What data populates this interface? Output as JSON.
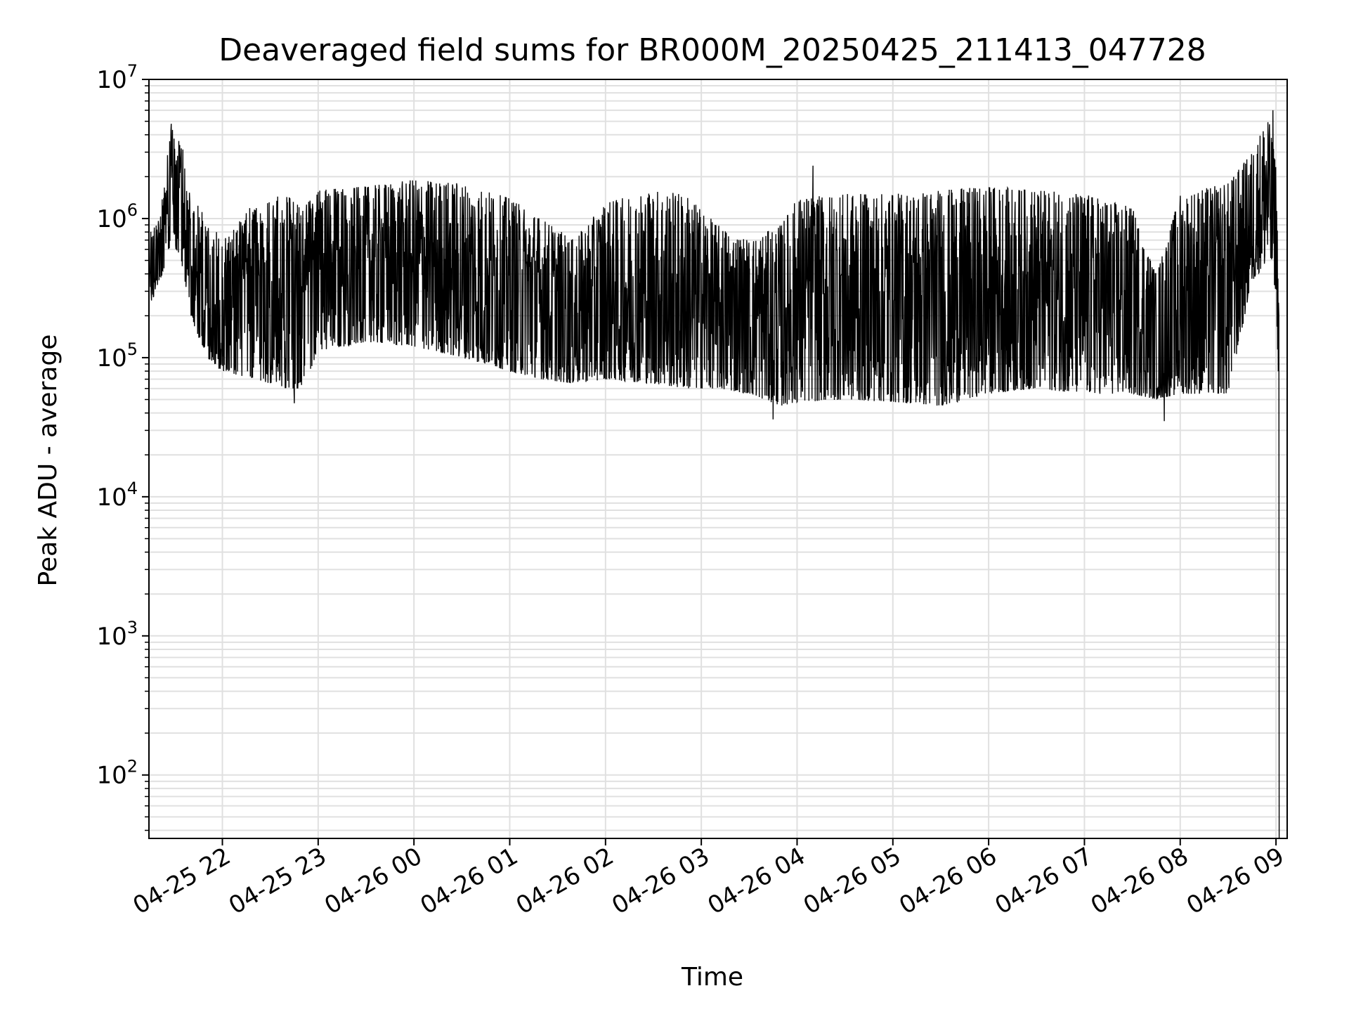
{
  "chart_data": {
    "type": "line",
    "title": "Deaveraged field sums for BR000M_20250425_211413_047728",
    "xlabel": "Time",
    "ylabel": "Peak ADU - average",
    "yscale": "log",
    "ylim": [
      35,
      10000000
    ],
    "xlim": [
      "2025-04-25 21:14",
      "2025-04-26 09:07"
    ],
    "grid": true,
    "grid_minor": true,
    "line_color": "#000000",
    "grid_color": "#e0e0e0",
    "x_ticks": [
      {
        "value": "2025-04-25 22:00",
        "label": "04-25 22"
      },
      {
        "value": "2025-04-25 23:00",
        "label": "04-25 23"
      },
      {
        "value": "2025-04-26 00:00",
        "label": "04-26 00"
      },
      {
        "value": "2025-04-26 01:00",
        "label": "04-26 01"
      },
      {
        "value": "2025-04-26 02:00",
        "label": "04-26 02"
      },
      {
        "value": "2025-04-26 03:00",
        "label": "04-26 03"
      },
      {
        "value": "2025-04-26 04:00",
        "label": "04-26 04"
      },
      {
        "value": "2025-04-26 05:00",
        "label": "04-26 05"
      },
      {
        "value": "2025-04-26 06:00",
        "label": "04-26 06"
      },
      {
        "value": "2025-04-26 07:00",
        "label": "04-26 07"
      },
      {
        "value": "2025-04-26 08:00",
        "label": "04-26 08"
      },
      {
        "value": "2025-04-26 09:00",
        "label": "04-26 09"
      }
    ],
    "y_ticks": [
      {
        "value": 100,
        "base": "10",
        "exp": "2"
      },
      {
        "value": 1000,
        "base": "10",
        "exp": "3"
      },
      {
        "value": 10000,
        "base": "10",
        "exp": "4"
      },
      {
        "value": 100000,
        "base": "10",
        "exp": "5"
      },
      {
        "value": 1000000,
        "base": "10",
        "exp": "6"
      },
      {
        "value": 10000000,
        "base": "10",
        "exp": "7"
      }
    ],
    "series": [
      {
        "envelope": [
          {
            "t": "2025-04-25 21:14",
            "low": 230000,
            "high": 800000
          },
          {
            "t": "2025-04-25 21:20",
            "low": 330000,
            "high": 1000000
          },
          {
            "t": "2025-04-25 21:25",
            "low": 500000,
            "high": 2600000
          },
          {
            "t": "2025-04-25 21:28",
            "low": 700000,
            "high": 4500000
          },
          {
            "t": "2025-04-25 21:35",
            "low": 450000,
            "high": 3300000
          },
          {
            "t": "2025-04-25 21:40",
            "low": 200000,
            "high": 1500000
          },
          {
            "t": "2025-04-25 21:50",
            "low": 100000,
            "high": 1000000
          },
          {
            "t": "2025-04-25 22:00",
            "low": 80000,
            "high": 700000
          },
          {
            "t": "2025-04-25 22:20",
            "low": 70000,
            "high": 1300000
          },
          {
            "t": "2025-04-25 22:40",
            "low": 60000,
            "high": 1500000
          },
          {
            "t": "2025-04-25 22:50",
            "low": 60000,
            "high": 1200000
          },
          {
            "t": "2025-04-25 23:00",
            "low": 110000,
            "high": 1600000
          },
          {
            "t": "2025-04-25 23:30",
            "low": 130000,
            "high": 1700000
          },
          {
            "t": "2025-04-26 00:00",
            "low": 120000,
            "high": 1900000
          },
          {
            "t": "2025-04-26 00:30",
            "low": 100000,
            "high": 1800000
          },
          {
            "t": "2025-04-26 01:00",
            "low": 80000,
            "high": 1400000
          },
          {
            "t": "2025-04-26 01:20",
            "low": 70000,
            "high": 1000000
          },
          {
            "t": "2025-04-26 01:40",
            "low": 65000,
            "high": 700000
          },
          {
            "t": "2025-04-26 02:00",
            "low": 70000,
            "high": 1300000
          },
          {
            "t": "2025-04-26 02:30",
            "low": 65000,
            "high": 1600000
          },
          {
            "t": "2025-04-26 02:50",
            "low": 60000,
            "high": 1500000
          },
          {
            "t": "2025-04-26 03:10",
            "low": 60000,
            "high": 900000
          },
          {
            "t": "2025-04-26 03:30",
            "low": 55000,
            "high": 700000
          },
          {
            "t": "2025-04-26 03:50",
            "low": 45000,
            "high": 900000
          },
          {
            "t": "2025-04-26 04:00",
            "low": 48000,
            "high": 1400000
          },
          {
            "t": "2025-04-26 04:30",
            "low": 50000,
            "high": 1500000
          },
          {
            "t": "2025-04-26 05:00",
            "low": 48000,
            "high": 1500000
          },
          {
            "t": "2025-04-26 05:30",
            "low": 45000,
            "high": 1600000
          },
          {
            "t": "2025-04-26 06:00",
            "low": 55000,
            "high": 1700000
          },
          {
            "t": "2025-04-26 06:30",
            "low": 60000,
            "high": 1600000
          },
          {
            "t": "2025-04-26 07:00",
            "low": 55000,
            "high": 1500000
          },
          {
            "t": "2025-04-26 07:30",
            "low": 55000,
            "high": 1200000
          },
          {
            "t": "2025-04-26 07:45",
            "low": 50000,
            "high": 400000
          },
          {
            "t": "2025-04-26 08:00",
            "low": 55000,
            "high": 1500000
          },
          {
            "t": "2025-04-26 08:30",
            "low": 55000,
            "high": 1800000
          },
          {
            "t": "2025-04-26 08:45",
            "low": 350000,
            "high": 3000000
          },
          {
            "t": "2025-04-26 08:55",
            "low": 500000,
            "high": 5500000
          },
          {
            "t": "2025-04-26 09:00",
            "low": 300000,
            "high": 2500000
          },
          {
            "t": "2025-04-26 09:02",
            "low": 45000,
            "high": 200000
          }
        ],
        "spikes": [
          {
            "t": "2025-04-25 21:28",
            "value": 4800000
          },
          {
            "t": "2025-04-25 22:45",
            "value": 47000
          },
          {
            "t": "2025-04-26 03:45",
            "value": 36000
          },
          {
            "t": "2025-04-26 04:10",
            "value": 2400000
          },
          {
            "t": "2025-04-26 07:50",
            "value": 35000
          },
          {
            "t": "2025-04-26 08:58",
            "value": 6000000
          },
          {
            "t": "2025-04-26 09:03",
            "value": 35
          }
        ]
      }
    ]
  }
}
